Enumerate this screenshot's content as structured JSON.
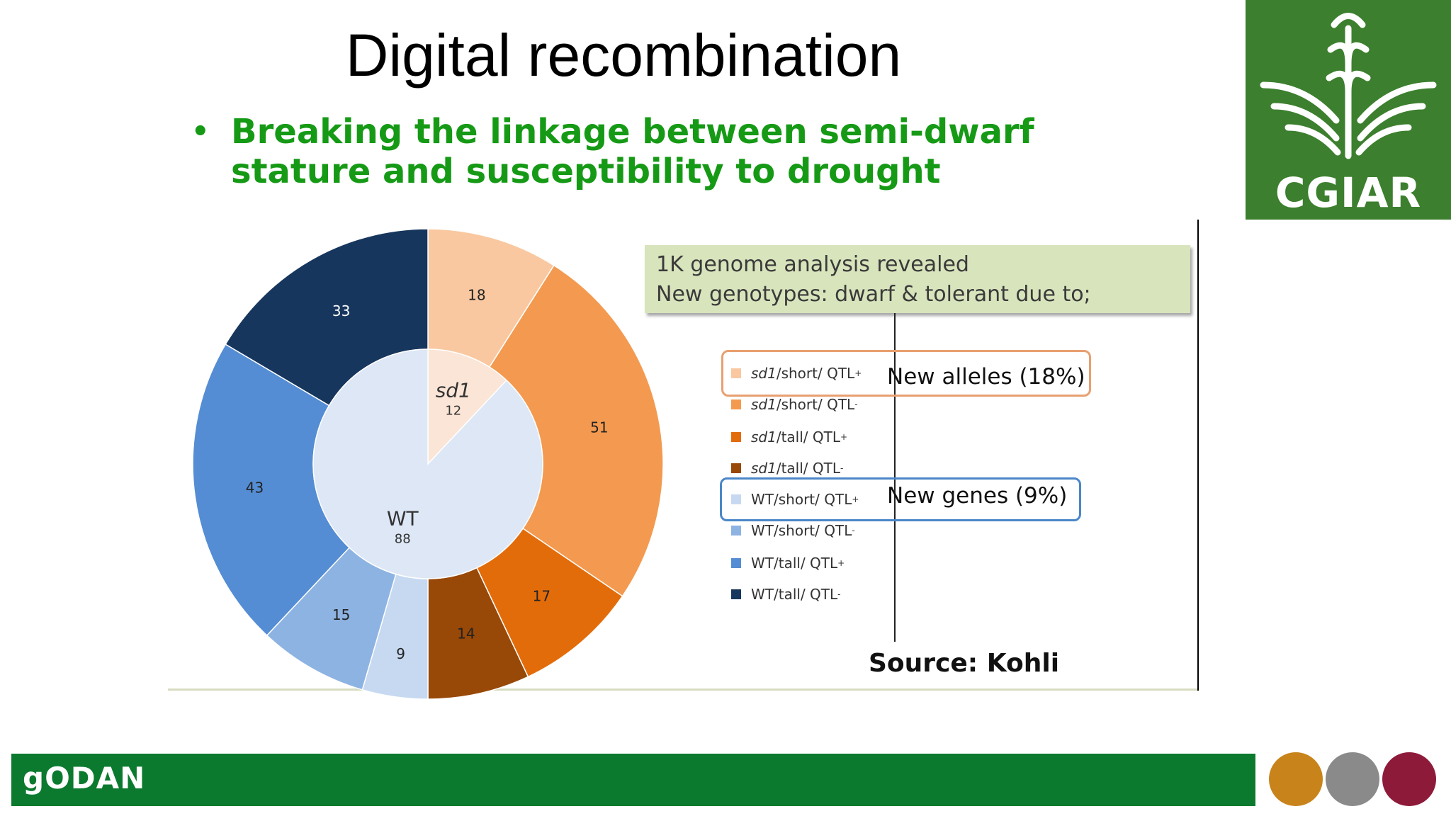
{
  "slide": {
    "title": "Digital recombination",
    "bullet": "Breaking the linkage between semi-dwarf stature and susceptibility to drought",
    "bullet_marker": "•"
  },
  "logo": {
    "name": "CGIAR",
    "icon": "wheat-icon",
    "color": "#3c7f2e"
  },
  "footer": {
    "brand": "gODAN",
    "bar_color": "#0b7a2e",
    "circles": [
      "#c8831a",
      "#8a8a8a",
      "#8e1a3a"
    ]
  },
  "note": {
    "line1": "1K genome analysis revealed",
    "line2": "New genotypes: dwarf & tolerant due to;"
  },
  "callouts": {
    "alleles": "New alleles (18%)",
    "genes": "New genes (9%)"
  },
  "source": "Source: Kohli",
  "legend": [
    {
      "allele": "sd1",
      "rest": "/short/ QTL",
      "sup": "+",
      "color": "#f9c8a0"
    },
    {
      "allele": "sd1",
      "rest": "/short/ QTL",
      "sup": "-",
      "color": "#f39a50"
    },
    {
      "allele": "sd1",
      "rest": "/tall/ QTL",
      "sup": "+",
      "color": "#e36c0a"
    },
    {
      "allele": "sd1",
      "rest": "/tall/ QTL",
      "sup": "-",
      "color": "#984807"
    },
    {
      "allele": "WT",
      "rest": "/short/ QTL",
      "sup": "+",
      "color": "#c6d9f1"
    },
    {
      "allele": "WT",
      "rest": "/short/ QTL",
      "sup": "-",
      "color": "#8db3e2"
    },
    {
      "allele": "WT",
      "rest": "/tall/ QTL",
      "sup": "+",
      "color": "#548dd4"
    },
    {
      "allele": "WT",
      "rest": "/tall/ QTL",
      "sup": "-",
      "color": "#17365d"
    }
  ],
  "chart_data": {
    "type": "pie",
    "variant": "donut",
    "outer": {
      "slices": [
        {
          "label": "sd1/short/ QTL+",
          "value": 18,
          "color": "#f9c8a0"
        },
        {
          "label": "sd1/short/ QTL-",
          "value": 51,
          "color": "#f39a50"
        },
        {
          "label": "sd1/tall/ QTL+",
          "value": 17,
          "color": "#e36c0a"
        },
        {
          "label": "sd1/tall/ QTL-",
          "value": 14,
          "color": "#984807"
        },
        {
          "label": "WT/short/ QTL+",
          "value": 9,
          "color": "#c6d9f1"
        },
        {
          "label": "WT/short/ QTL-",
          "value": 15,
          "color": "#8db3e2"
        },
        {
          "label": "WT/tall/ QTL+",
          "value": 43,
          "color": "#548dd4"
        },
        {
          "label": "WT/tall/ QTL-",
          "value": 33,
          "color": "#17365d"
        }
      ]
    },
    "inner": {
      "slices": [
        {
          "label": "sd1",
          "value": 12,
          "color": "#fbe5d6"
        },
        {
          "label": "WT",
          "value": 88,
          "color": "#dde7f5"
        }
      ]
    }
  }
}
